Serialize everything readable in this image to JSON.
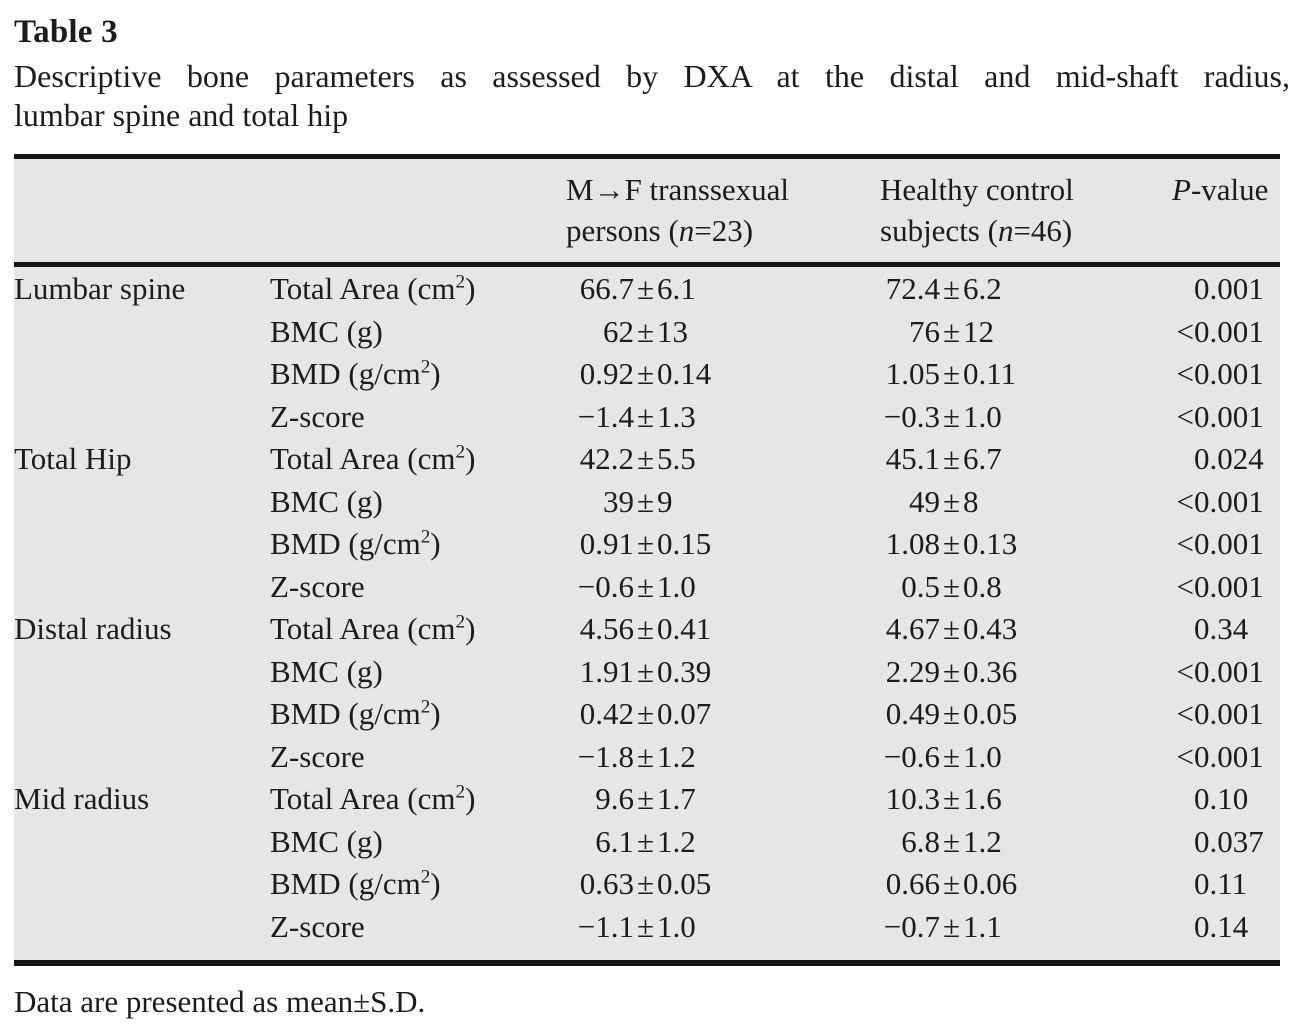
{
  "page": {
    "title": "Table 3",
    "caption_line1": "Descriptive bone parameters as assessed by DXA at the distal and mid-shaft radius,",
    "caption_line2": "lumbar spine and total hip",
    "footnote": "Data are presented as mean±S.D."
  },
  "pm": "±",
  "header": {
    "group1_line1": "M→F transsexual",
    "group1_line2_pre": "persons (",
    "group1_n": "n",
    "group1_line2_post": "=23)",
    "group2_line1": "Healthy control",
    "group2_line2_pre": "subjects (",
    "group2_n": "n",
    "group2_line2_post": "=46)",
    "pvalue_p": "P",
    "pvalue_rest": "-value"
  },
  "colors": {
    "table_background": "#e5e6e8",
    "rule": "#161616",
    "text": "#1c1c1c"
  },
  "rows": [
    {
      "region": "Lumbar spine",
      "param_a": "Total Area (cm",
      "param_sup": "2",
      "param_b": ")",
      "g1_mean": "66.7",
      "g1_sd": "6.1",
      "g2_mean": "72.4",
      "g2_sd": "6.2",
      "p_lt": "",
      "p_val": "0.001"
    },
    {
      "param_a": "BMC (g)",
      "g1_mean": "62",
      "g1_sd": "13",
      "g2_mean": "76",
      "g2_sd": "12",
      "p_lt": "<",
      "p_val": "0.001"
    },
    {
      "param_a": "BMD (g/cm",
      "param_sup": "2",
      "param_b": ")",
      "g1_mean": "0.92",
      "g1_sd": "0.14",
      "g2_mean": "1.05",
      "g2_sd": "0.11",
      "p_lt": "<",
      "p_val": "0.001"
    },
    {
      "param_a": "Z-score",
      "g1_mean": "−1.4",
      "g1_sd": "1.3",
      "g2_mean": "−0.3",
      "g2_sd": "1.0",
      "p_lt": "<",
      "p_val": "0.001"
    },
    {
      "region": "Total Hip",
      "param_a": "Total Area (cm",
      "param_sup": "2",
      "param_b": ")",
      "g1_mean": "42.2",
      "g1_sd": "5.5",
      "g2_mean": "45.1",
      "g2_sd": "6.7",
      "p_lt": "",
      "p_val": "0.024"
    },
    {
      "param_a": "BMC (g)",
      "g1_mean": "39",
      "g1_sd": "9",
      "g2_mean": "49",
      "g2_sd": "8",
      "p_lt": "<",
      "p_val": "0.001"
    },
    {
      "param_a": "BMD (g/cm",
      "param_sup": "2",
      "param_b": ")",
      "g1_mean": "0.91",
      "g1_sd": "0.15",
      "g2_mean": "1.08",
      "g2_sd": "0.13",
      "p_lt": "<",
      "p_val": "0.001"
    },
    {
      "param_a": "Z-score",
      "g1_mean": "−0.6",
      "g1_sd": "1.0",
      "g2_mean": "0.5",
      "g2_sd": "0.8",
      "p_lt": "<",
      "p_val": "0.001"
    },
    {
      "region": "Distal radius",
      "param_a": "Total Area (cm",
      "param_sup": "2",
      "param_b": ")",
      "g1_mean": "4.56",
      "g1_sd": "0.41",
      "g2_mean": "4.67",
      "g2_sd": "0.43",
      "p_lt": "",
      "p_val": "0.34"
    },
    {
      "param_a": "BMC (g)",
      "g1_mean": "1.91",
      "g1_sd": "0.39",
      "g2_mean": "2.29",
      "g2_sd": "0.36",
      "p_lt": "<",
      "p_val": "0.001"
    },
    {
      "param_a": "BMD (g/cm",
      "param_sup": "2",
      "param_b": ")",
      "g1_mean": "0.42",
      "g1_sd": "0.07",
      "g2_mean": "0.49",
      "g2_sd": "0.05",
      "p_lt": "<",
      "p_val": "0.001"
    },
    {
      "param_a": "Z-score",
      "g1_mean": "−1.8",
      "g1_sd": "1.2",
      "g2_mean": "−0.6",
      "g2_sd": "1.0",
      "p_lt": "<",
      "p_val": "0.001"
    },
    {
      "region": "Mid radius",
      "param_a": "Total Area (cm",
      "param_sup": "2",
      "param_b": ")",
      "g1_mean": "9.6",
      "g1_sd": "1.7",
      "g2_mean": "10.3",
      "g2_sd": "1.6",
      "p_lt": "",
      "p_val": "0.10"
    },
    {
      "param_a": "BMC (g)",
      "g1_mean": "6.1",
      "g1_sd": "1.2",
      "g2_mean": "6.8",
      "g2_sd": "1.2",
      "p_lt": "",
      "p_val": "0.037"
    },
    {
      "param_a": "BMD (g/cm",
      "param_sup": "2",
      "param_b": ")",
      "g1_mean": "0.63",
      "g1_sd": "0.05",
      "g2_mean": "0.66",
      "g2_sd": "0.06",
      "p_lt": "",
      "p_val": "0.11"
    },
    {
      "param_a": "Z-score",
      "g1_mean": "−1.1",
      "g1_sd": "1.0",
      "g2_mean": "−0.7",
      "g2_sd": "1.1",
      "p_lt": "",
      "p_val": "0.14"
    }
  ]
}
